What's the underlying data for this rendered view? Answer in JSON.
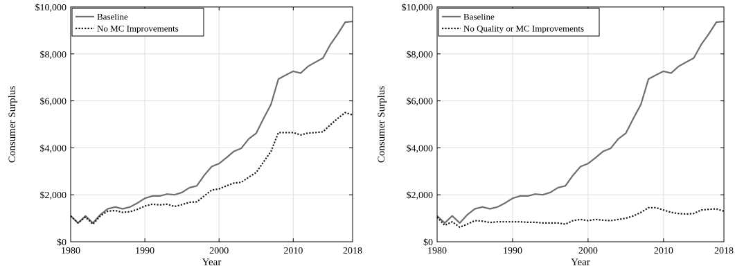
{
  "colors": {
    "baseline": "#6e6e6e",
    "alternative": "#1a1a1a",
    "grid": "#dddddd",
    "axis": "#000000"
  },
  "chart_data": [
    {
      "type": "line",
      "xlabel": "Year",
      "ylabel": "Consumer Surplus",
      "xlim": [
        1980,
        2018
      ],
      "ylim": [
        0,
        10000
      ],
      "x_ticks": [
        1980,
        1990,
        2000,
        2010,
        2018
      ],
      "y_ticks": [
        0,
        2000,
        4000,
        6000,
        8000,
        10000
      ],
      "y_tick_labels": [
        "$0",
        "$2,000",
        "$4,000",
        "$6,000",
        "$8,000",
        "$10,000"
      ],
      "grid": true,
      "legend_position": "top-left",
      "x": [
        1980,
        1981,
        1982,
        1983,
        1984,
        1985,
        1986,
        1987,
        1988,
        1989,
        1990,
        1991,
        1992,
        1993,
        1994,
        1995,
        1996,
        1997,
        1998,
        1999,
        2000,
        2001,
        2002,
        2003,
        2004,
        2005,
        2006,
        2007,
        2008,
        2009,
        2010,
        2011,
        2012,
        2013,
        2014,
        2015,
        2016,
        2017,
        2018
      ],
      "series": [
        {
          "name": "Baseline",
          "style": "solid",
          "values": [
            1100,
            800,
            1100,
            800,
            1150,
            1400,
            1480,
            1400,
            1480,
            1650,
            1850,
            1950,
            1950,
            2030,
            2000,
            2100,
            2300,
            2380,
            2830,
            3200,
            3330,
            3580,
            3850,
            3980,
            4380,
            4620,
            5250,
            5850,
            6930,
            7100,
            7260,
            7180,
            7470,
            7650,
            7820,
            8400,
            8850,
            9350,
            9380
          ]
        },
        {
          "name": "No MC Improvements",
          "style": "dotted",
          "values": [
            1100,
            800,
            1050,
            750,
            1100,
            1300,
            1330,
            1250,
            1280,
            1380,
            1520,
            1600,
            1570,
            1600,
            1500,
            1580,
            1680,
            1700,
            1950,
            2200,
            2250,
            2380,
            2500,
            2530,
            2750,
            2950,
            3400,
            3850,
            4650,
            4650,
            4650,
            4550,
            4630,
            4650,
            4680,
            4980,
            5250,
            5500,
            5400
          ]
        }
      ]
    },
    {
      "type": "line",
      "xlabel": "Year",
      "ylabel": "Consumer Surplus",
      "xlim": [
        1980,
        2018
      ],
      "ylim": [
        0,
        10000
      ],
      "x_ticks": [
        1980,
        1990,
        2000,
        2010,
        2018
      ],
      "y_ticks": [
        0,
        2000,
        4000,
        6000,
        8000,
        10000
      ],
      "y_tick_labels": [
        "$0",
        "$2,000",
        "$4,000",
        "$6,000",
        "$8,000",
        "$10,000"
      ],
      "grid": true,
      "legend_position": "top-left",
      "x": [
        1980,
        1981,
        1982,
        1983,
        1984,
        1985,
        1986,
        1987,
        1988,
        1989,
        1990,
        1991,
        1992,
        1993,
        1994,
        1995,
        1996,
        1997,
        1998,
        1999,
        2000,
        2001,
        2002,
        2003,
        2004,
        2005,
        2006,
        2007,
        2008,
        2009,
        2010,
        2011,
        2012,
        2013,
        2014,
        2015,
        2016,
        2017,
        2018
      ],
      "series": [
        {
          "name": "Baseline",
          "style": "solid",
          "values": [
            1100,
            800,
            1100,
            800,
            1150,
            1400,
            1480,
            1400,
            1480,
            1650,
            1850,
            1950,
            1950,
            2030,
            2000,
            2100,
            2300,
            2380,
            2830,
            3200,
            3330,
            3580,
            3850,
            3980,
            4380,
            4620,
            5250,
            5850,
            6930,
            7100,
            7260,
            7180,
            7470,
            7650,
            7820,
            8400,
            8850,
            9350,
            9380
          ]
        },
        {
          "name": "No Quality or MC Improvements",
          "style": "dotted",
          "values": [
            1050,
            700,
            850,
            620,
            750,
            900,
            880,
            820,
            850,
            850,
            850,
            850,
            830,
            830,
            800,
            800,
            800,
            750,
            900,
            950,
            900,
            950,
            920,
            900,
            950,
            1000,
            1100,
            1250,
            1450,
            1450,
            1350,
            1250,
            1200,
            1180,
            1200,
            1350,
            1380,
            1400,
            1300
          ]
        }
      ]
    }
  ]
}
